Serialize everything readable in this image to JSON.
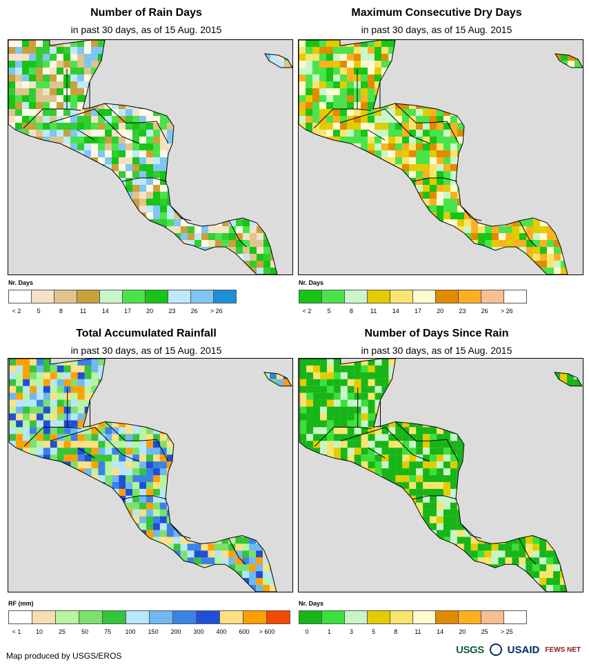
{
  "panels": [
    {
      "title": "Number of Rain Days",
      "subtitle": "in past 30 days, as of 15 Aug. 2015",
      "legend_title": "Nr. Days",
      "legend_colors": [
        "#ffffff",
        "#f5e1c5",
        "#e0c490",
        "#c9a13c",
        "#c9f7c9",
        "#4be34b",
        "#17c417",
        "#bfe9fb",
        "#7fc6f2",
        "#1c8fd8"
      ],
      "ticks": [
        "< 2",
        "5",
        "8",
        "11",
        "14",
        "17",
        "20",
        "23",
        "26",
        "> 26"
      ],
      "palette": [
        "#17c417",
        "#32cd32",
        "#4be34b",
        "#c9a13c",
        "#e0c490",
        "#f5e1c5",
        "#bfe9fb",
        "#7fc6f2",
        "#fff8e6"
      ]
    },
    {
      "title": "Maximum Consecutive Dry Days",
      "subtitle": "in past 30 days, as of 15 Aug. 2015",
      "legend_title": "Nr. Days",
      "legend_colors": [
        "#17c417",
        "#4be34b",
        "#c9f7c9",
        "#e3cc00",
        "#f8e56d",
        "#fffbd0",
        "#e08c00",
        "#ffb020",
        "#f9bf90",
        "#ffffff"
      ],
      "ticks": [
        "< 2",
        "5",
        "8",
        "11",
        "14",
        "17",
        "20",
        "23",
        "26",
        "> 26"
      ],
      "palette": [
        "#4be34b",
        "#4be34b",
        "#c9f7c9",
        "#17c417",
        "#e3cc00",
        "#f8e56d",
        "#e08c00",
        "#ffb020",
        "#fffbd0"
      ]
    },
    {
      "title": "Total Accumulated Rainfall",
      "subtitle": "in past 30 days, as of 15 Aug. 2015",
      "legend_title": "RF (mm)",
      "legend_colors": [
        "#ffffff",
        "#f5deb3",
        "#b7f5a0",
        "#7be16b",
        "#35c43a",
        "#b8e6fb",
        "#6fb8f0",
        "#3a82e6",
        "#1f4fd6",
        "#ffe082",
        "#ffa000",
        "#f24a00"
      ],
      "ticks": [
        "< 1",
        "10",
        "25",
        "50",
        "75",
        "100",
        "150",
        "200",
        "300",
        "400",
        "600",
        "> 600"
      ],
      "palette": [
        "#3a82e6",
        "#1f4fd6",
        "#6fb8f0",
        "#b8e6fb",
        "#7be16b",
        "#b7f5a0",
        "#ffa000",
        "#ffe082",
        "#35c43a"
      ]
    },
    {
      "title": "Number of Days Since Rain",
      "subtitle": "in past 30 days, as of 15 Aug. 2015",
      "legend_title": "Nr. Days",
      "legend_colors": [
        "#17b517",
        "#3ae13a",
        "#c8f5c8",
        "#e3cc00",
        "#f8e56d",
        "#fffbd0",
        "#e08c00",
        "#ffb020",
        "#f9bf90",
        "#ffffff"
      ],
      "ticks": [
        "0",
        "1",
        "3",
        "5",
        "8",
        "11",
        "14",
        "20",
        "25",
        "> 25"
      ],
      "palette": [
        "#17b517",
        "#17b517",
        "#17b517",
        "#3ae13a",
        "#17b517",
        "#c8f5c8",
        "#f8e56d",
        "#e3cc00",
        "#17b517"
      ]
    }
  ],
  "footer": {
    "credit": "Map produced by USGS/EROS",
    "logos": [
      "USGS",
      "USAID",
      "FEWS NET"
    ]
  }
}
